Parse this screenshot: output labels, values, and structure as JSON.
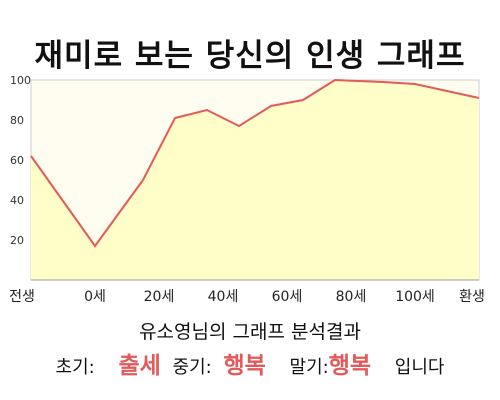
{
  "title": "재미로 보는 당신의 인생 그래프",
  "chart_data": {
    "type": "area",
    "title": "재미로 보는 당신의 인생 그래프",
    "xlabel": "",
    "ylabel": "",
    "ylim": [
      0,
      100
    ],
    "y_ticks": [
      20,
      40,
      60,
      80,
      100
    ],
    "x_ticks": [
      "전생",
      "0세",
      "20세",
      "40세",
      "60세",
      "80세",
      "100세",
      "환생"
    ],
    "x_tick_positions": [
      -20,
      0,
      20,
      40,
      60,
      80,
      100,
      120
    ],
    "xlim": [
      -20,
      120
    ],
    "grid": false,
    "series": [
      {
        "x": [
          -20,
          0,
          15,
          25,
          35,
          45,
          55,
          65,
          75,
          90,
          100,
          120
        ],
        "y": [
          62,
          17,
          50,
          81,
          85,
          77,
          87,
          90,
          100,
          99,
          98,
          91
        ]
      }
    ],
    "line_color": "#e35a5a",
    "fill_color": "#fffdc8",
    "plot_bg": "#fffdf0"
  },
  "result": {
    "heading": "유소영님의 그래프 분석결과",
    "early_label": "초기:",
    "early_value": "출세",
    "mid_label": "중기:",
    "mid_value": "행복",
    "late_label": "말기:",
    "late_value": "행복",
    "ending": "입니다"
  }
}
